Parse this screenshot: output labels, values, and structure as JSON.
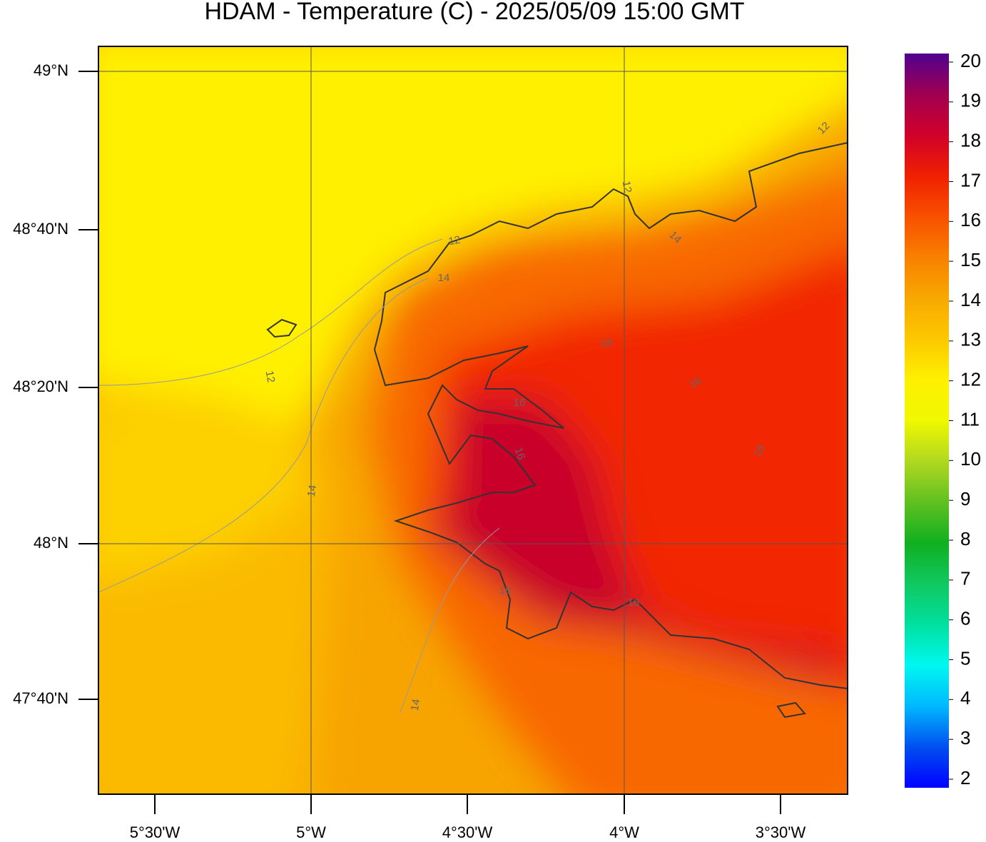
{
  "title": "HDAM - Temperature (C)  -  2025/05/09  15:00 GMT",
  "map": {
    "lat_labels": [
      "49°N",
      "48°40'N",
      "48°20'N",
      "48°N",
      "47°40'N"
    ],
    "lon_labels": [
      "5°30'W",
      "5°W",
      "4°30'W",
      "4°W",
      "3°30'W"
    ],
    "contour_labels": [
      "12",
      "12",
      "12",
      "12",
      "14",
      "14",
      "14",
      "14",
      "16",
      "16",
      "16",
      "16",
      "16",
      "16",
      "16"
    ]
  },
  "colorbar": {
    "ticks": [
      2,
      3,
      4,
      5,
      6,
      7,
      8,
      9,
      10,
      11,
      12,
      13,
      14,
      15,
      16,
      17,
      18,
      19,
      20
    ],
    "colors": [
      "#0000ff",
      "#0050f0",
      "#00b8ff",
      "#00f8f0",
      "#00e0a0",
      "#10c860",
      "#10b020",
      "#60c020",
      "#b0d820",
      "#f0f800",
      "#fff000",
      "#fcc800",
      "#f8a800",
      "#f88000",
      "#f85000",
      "#f02000",
      "#d0002a",
      "#a00050",
      "#500090"
    ]
  }
}
